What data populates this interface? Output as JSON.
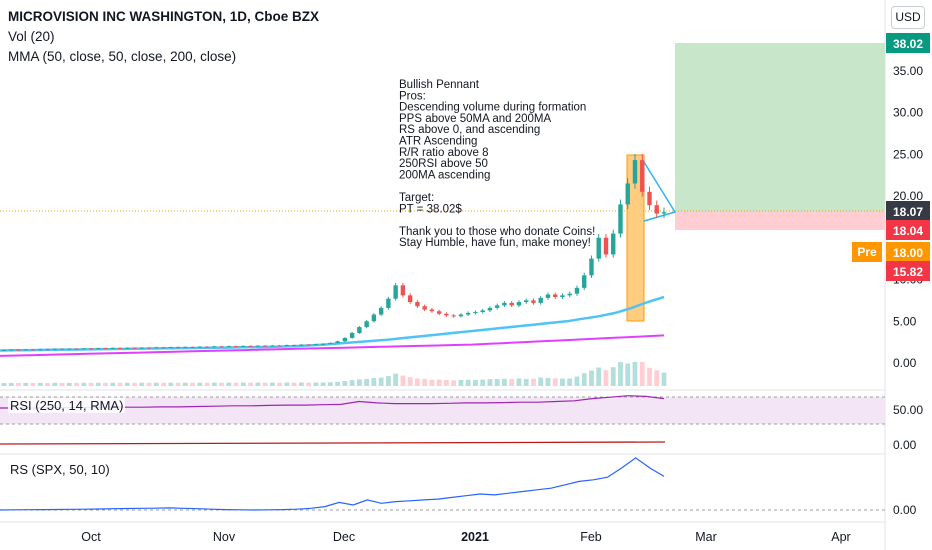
{
  "header": {
    "title": "MICROVISION INC WASHINGTON, 1D, Cboe BZX",
    "volume_label": "Vol (20)",
    "mma_label": "MMA (50, close, 50, close, 200, close)",
    "currency_button": "USD"
  },
  "annotation_lines": [
    "Bullish Pennant",
    "Pros:",
    "Descending volume during formation",
    "PPS above 50MA and 200MA",
    "RS above 0, and ascending",
    "ATR Ascending",
    "R/R ratio above 8",
    "250RSI above 50",
    "200MA ascending",
    "",
    "Target:",
    "PT = 38.02$",
    "",
    "Thank you to those who donate Coins!",
    "Stay Humble, have fun, make money!"
  ],
  "price_tags": [
    {
      "text": "38.02",
      "value": 38.02,
      "color": "#089981"
    },
    {
      "text": "18.07",
      "value": 18.07,
      "color": "#363a45"
    },
    {
      "text": "18.04",
      "value": 18.04,
      "color": "#f23645"
    },
    {
      "text": "18.00",
      "value": 18.0,
      "color": "#ff9800"
    },
    {
      "text": "15.82",
      "value": 15.82,
      "color": "#f23645"
    }
  ],
  "pre_label": "Pre",
  "panes": {
    "rsi": {
      "label": "RSI (250, 14, RMA)",
      "ticks": [
        "50.00",
        "0.00"
      ]
    },
    "rs": {
      "label": "RS (SPX, 50, 10)",
      "ticks": [
        "0.00"
      ]
    }
  },
  "chart_data": {
    "type": "candlestick",
    "price_axis": {
      "ticks": [
        35,
        30,
        25,
        20,
        15,
        10,
        5,
        0
      ],
      "tick_labels": [
        "35.00",
        "30.00",
        "25.00",
        "20.00",
        "",
        "10.00",
        "5.00",
        "0.00"
      ],
      "ylim": [
        -1,
        40
      ]
    },
    "x_tick_labels": [
      "Oct",
      "Nov",
      "Dec",
      "2021",
      "Feb",
      "Mar",
      "Apr"
    ],
    "closes": [
      1.55,
      1.6,
      1.58,
      1.62,
      1.6,
      1.65,
      1.63,
      1.7,
      1.68,
      1.72,
      1.7,
      1.75,
      1.73,
      1.78,
      1.75,
      1.8,
      1.78,
      1.82,
      1.8,
      1.85,
      1.83,
      1.88,
      1.85,
      1.9,
      1.88,
      1.92,
      1.9,
      1.95,
      1.93,
      2.0,
      1.97,
      2.02,
      2.0,
      2.05,
      2.02,
      2.08,
      2.05,
      2.1,
      2.08,
      2.15,
      2.12,
      2.2,
      2.18,
      2.25,
      2.3,
      2.4,
      2.6,
      3.0,
      3.6,
      4.3,
      5.0,
      5.8,
      6.6,
      7.7,
      9.3,
      8.1,
      7.3,
      6.8,
      6.4,
      6.2,
      5.9,
      5.7,
      5.6,
      5.8,
      6.0,
      6.1,
      6.3,
      6.6,
      6.9,
      7.2,
      6.9,
      7.3,
      7.5,
      7.2,
      7.8,
      8.2,
      7.9,
      8.1,
      8.3,
      9.0,
      10.5,
      12.5,
      15.0,
      13.0,
      15.5,
      19.0,
      21.5,
      24.3,
      20.5,
      18.9,
      17.9,
      18.07
    ],
    "mma50": [
      1.5,
      1.52,
      1.55,
      1.58,
      1.6,
      1.62,
      1.65,
      1.68,
      1.7,
      1.72,
      1.75,
      1.78,
      1.8,
      1.82,
      1.85,
      1.88,
      1.9,
      1.95,
      2.0,
      2.1,
      2.2,
      2.35,
      2.5,
      2.65,
      2.8,
      3.0,
      3.2,
      3.4,
      3.6,
      3.8,
      4.0,
      4.2,
      4.4,
      4.6,
      4.8,
      5.0,
      5.3,
      5.6,
      6.0,
      6.6,
      7.3,
      7.9
    ],
    "mma200": [
      0.85,
      0.9,
      0.95,
      1.0,
      1.05,
      1.1,
      1.15,
      1.2,
      1.25,
      1.3,
      1.35,
      1.4,
      1.45,
      1.5,
      1.55,
      1.6,
      1.65,
      1.7,
      1.75,
      1.8,
      1.85,
      1.9,
      1.95,
      2.0,
      2.05,
      2.1,
      2.15,
      2.2,
      2.3,
      2.4,
      2.5,
      2.6,
      2.7,
      2.8,
      2.9,
      3.0,
      3.1,
      3.2,
      3.3
    ],
    "target_price": 38.02,
    "entry_price": 18.07,
    "stop_price": 15.82,
    "rsi_values": [
      57,
      57,
      57,
      57.5,
      57.5,
      57.5,
      58,
      58,
      58,
      58.5,
      58.5,
      59,
      59.5,
      60,
      60,
      60.5,
      61,
      61,
      61.5,
      62,
      66,
      64,
      63,
      63,
      63,
      63.5,
      64,
      64,
      64.5,
      65,
      65,
      66,
      67,
      70,
      72,
      74,
      73,
      70
    ],
    "rs_values": [
      0.0,
      0.02,
      0.03,
      0.05,
      0.06,
      0.08,
      0.1,
      0.12,
      0.15,
      0.18,
      0.2,
      0.22,
      0.25,
      0.2,
      0.15,
      0.1,
      0.05,
      0.02,
      0.0,
      0.02,
      0.05,
      0.1,
      0.2,
      0.4,
      0.9,
      0.6,
      1.2,
      0.8,
      1.0,
      1.1,
      1.2,
      1.3,
      1.5,
      1.7,
      1.9,
      1.8,
      2.0,
      2.2,
      2.4,
      2.6,
      3.0,
      3.4,
      3.6,
      3.9,
      5.0,
      6.2,
      5.0,
      4.0
    ],
    "colors": {
      "up": "#26a69a",
      "down": "#ef5350",
      "mma50": "#4fc3f7",
      "mma200": "#e040fb",
      "target_zone": "#c8e6c9",
      "stop_zone": "#ffcdd2",
      "pennant_box": "#ffcc80",
      "rs_line": "#2962ff",
      "rsi_line": "#9c27b0"
    }
  }
}
